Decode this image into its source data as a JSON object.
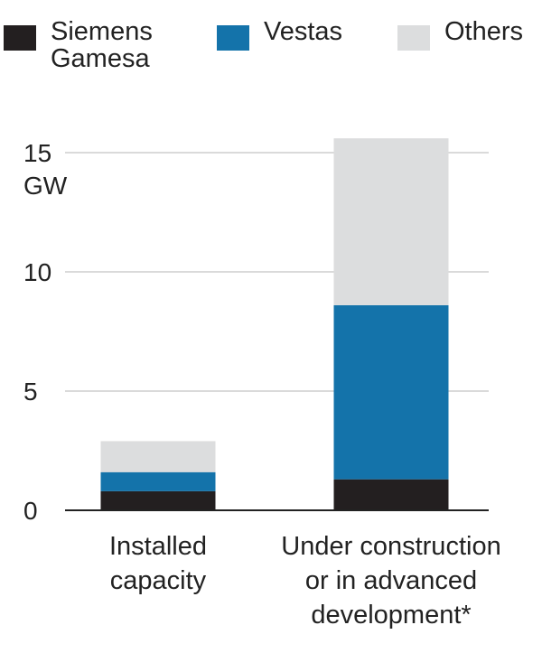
{
  "chart_data": {
    "type": "bar",
    "stacked": true,
    "categories": [
      [
        "Installed",
        "capacity"
      ],
      [
        "Under construction",
        "or in advanced",
        "development*"
      ]
    ],
    "series": [
      {
        "name": "Siemens Gamesa",
        "name_lines": [
          "Siemens",
          "Gamesa"
        ],
        "color": "#231f20",
        "values": [
          0.8,
          1.3
        ]
      },
      {
        "name": "Vestas",
        "name_lines": [
          "Vestas"
        ],
        "color": "#1473aa",
        "values": [
          0.8,
          7.3
        ]
      },
      {
        "name": "Others",
        "name_lines": [
          "Others"
        ],
        "color": "#dcddde",
        "values": [
          1.3,
          7.0
        ]
      }
    ],
    "yticks": [
      0,
      5,
      10,
      15
    ],
    "yunit": "GW",
    "ylim": [
      0,
      15.6
    ],
    "grid": true,
    "legend": "top"
  }
}
